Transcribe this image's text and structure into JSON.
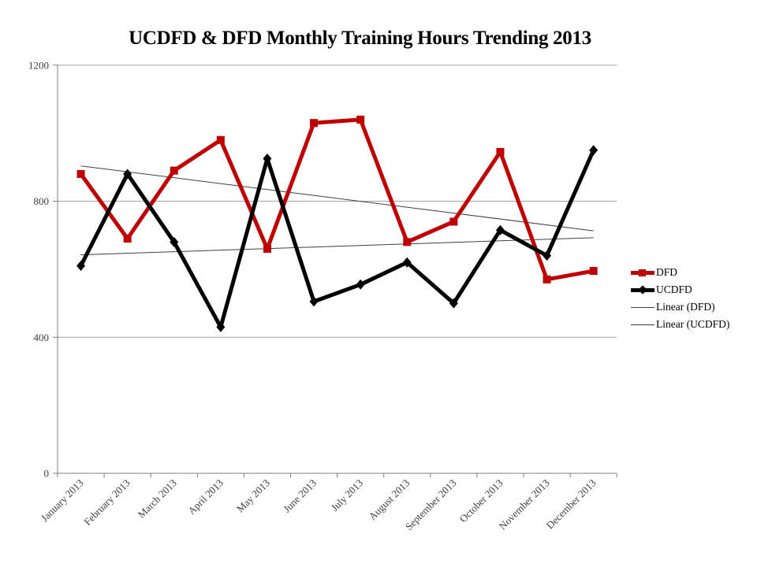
{
  "chart_data": {
    "type": "line",
    "title": "UCDFD & DFD Monthly Training Hours Trending 2013",
    "categories": [
      "January 2013",
      "February 2013",
      "March 2013",
      "April 2013",
      "May 2013",
      "June 2013",
      "July 2013",
      "August 2013",
      "September 2013",
      "October 2013",
      "November 2013",
      "December 2013"
    ],
    "series": [
      {
        "name": "DFD",
        "color": "#C00000",
        "marker": "square",
        "values": [
          880,
          690,
          890,
          980,
          660,
          1030,
          1040,
          680,
          740,
          945,
          570,
          595
        ]
      },
      {
        "name": "UCDFD",
        "color": "#000000",
        "marker": "diamond",
        "values": [
          610,
          880,
          680,
          430,
          925,
          505,
          555,
          620,
          500,
          715,
          640,
          950
        ]
      }
    ],
    "trendlines": [
      {
        "name": "Linear (DFD)",
        "series": "DFD"
      },
      {
        "name": "Linear (UCDFD)",
        "series": "UCDFD"
      }
    ],
    "xlabel": "",
    "ylabel": "",
    "ylim": [
      0,
      1200
    ],
    "yticks": [
      0,
      400,
      800,
      1200
    ],
    "grid": "horizontal-only",
    "legend_position": "right",
    "gridline_color": "#A6A6A6",
    "axis_color": "#808080",
    "trendline_color": "#404040",
    "tick_label_color": "#404040"
  },
  "legend": {
    "items": [
      {
        "label": "DFD"
      },
      {
        "label": "UCDFD"
      },
      {
        "label": "Linear (DFD)"
      },
      {
        "label": "Linear (UCDFD)"
      }
    ]
  }
}
